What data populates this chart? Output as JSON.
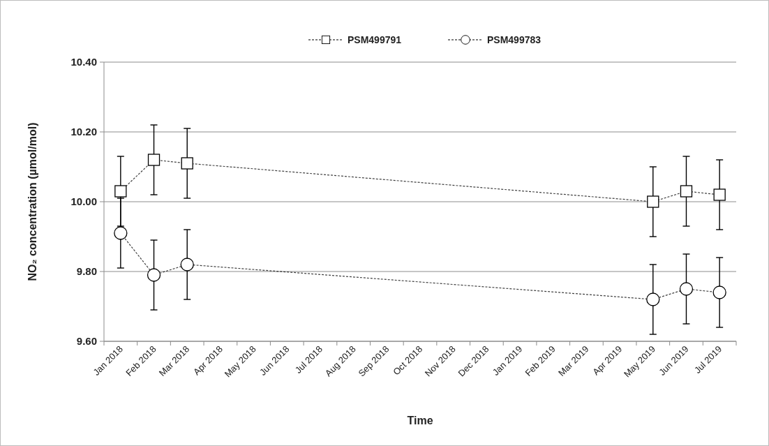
{
  "chart_data": {
    "type": "line",
    "xlabel": "Time",
    "ylabel": "NO₂ concentration (µmol/mol)",
    "categories": [
      "Jan 2018",
      "Feb 2018",
      "Mar 2018",
      "Apr 2018",
      "May 2018",
      "Jun 2018",
      "Jul 2018",
      "Aug 2018",
      "Sep 2018",
      "Oct 2018",
      "Nov 2018",
      "Dec 2018",
      "Jan 2019",
      "Feb 2019",
      "Mar 2019",
      "Apr 2019",
      "May 2019",
      "Jun 2019",
      "Jul 2019"
    ],
    "series": [
      {
        "name": "PSM499791",
        "color": "#000000",
        "marker": "square",
        "x": [
          "Jan 2018",
          "Feb 2018",
          "Mar 2018",
          "May 2019",
          "Jun 2019",
          "Jul 2019"
        ],
        "values": [
          10.03,
          10.12,
          10.11,
          10.0,
          10.03,
          10.02
        ],
        "errors": [
          0.1,
          0.1,
          0.1,
          0.1,
          0.1,
          0.1
        ]
      },
      {
        "name": "PSM499783",
        "color": "#000000",
        "marker": "circle",
        "x": [
          "Jan 2018",
          "Feb 2018",
          "Mar 2018",
          "May 2019",
          "Jun 2019",
          "Jul 2019"
        ],
        "values": [
          9.91,
          9.79,
          9.82,
          9.72,
          9.75,
          9.74
        ],
        "errors": [
          0.1,
          0.1,
          0.1,
          0.1,
          0.1,
          0.1
        ]
      }
    ],
    "ylim": [
      9.6,
      10.4
    ],
    "yticks": [
      {
        "value": 9.6,
        "label": "9.60"
      },
      {
        "value": 9.8,
        "label": "9.80"
      },
      {
        "value": 10.0,
        "label": "10.00"
      },
      {
        "value": 10.2,
        "label": "10.20"
      },
      {
        "value": 10.4,
        "label": "10.40"
      }
    ],
    "grid": "y",
    "legend": "top",
    "line_style": "dashed"
  }
}
